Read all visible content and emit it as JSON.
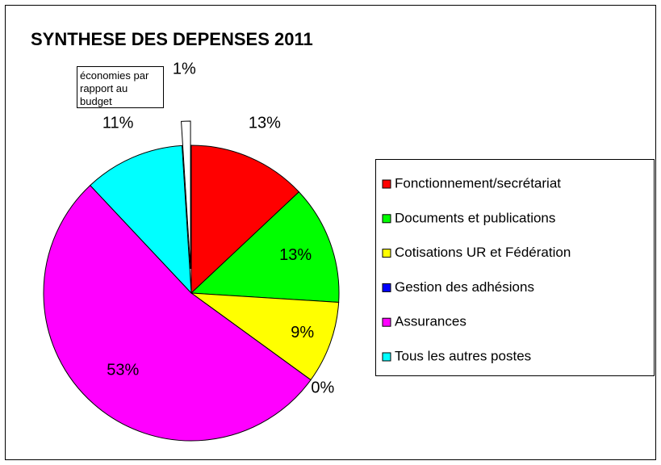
{
  "chart_data": {
    "type": "pie",
    "title": "SYNTHESE DES DEPENSES 2011",
    "categories": [
      "Fonctionnement/secrétariat",
      "Documents et publications",
      "Cotisations UR et Fédération",
      "Gestion des adhésions",
      "Assurances",
      "Tous les autres postes",
      "économies par rapport au budget"
    ],
    "values": [
      13,
      13,
      9,
      0,
      53,
      11,
      1
    ],
    "value_labels": [
      "13%",
      "13%",
      "9%",
      "0%",
      "53%",
      "11%",
      "1%"
    ],
    "colors": [
      "#ff0000",
      "#00ff00",
      "#ffff00",
      "#0000ff",
      "#ff00ff",
      "#00ffff",
      "#ffffff"
    ],
    "exploded": [
      6
    ],
    "legend": "right"
  }
}
